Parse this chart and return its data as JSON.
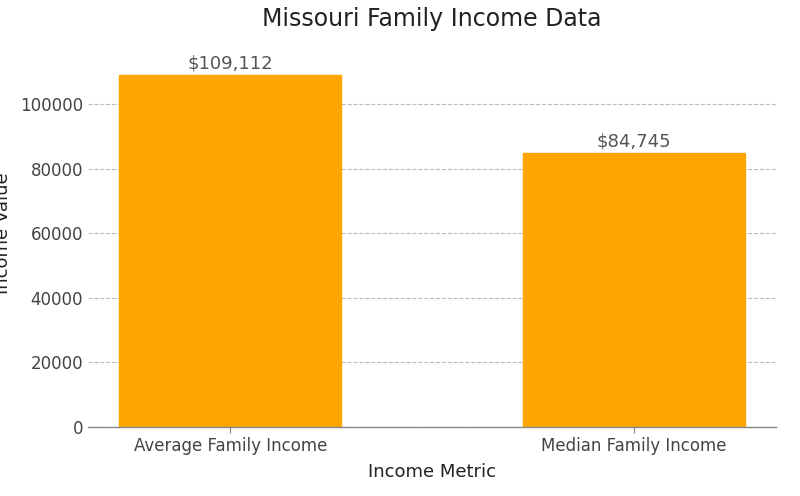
{
  "categories": [
    "Average Family Income",
    "Median Family Income"
  ],
  "values": [
    109112,
    84745
  ],
  "bar_color": "#FFA500",
  "title": "Missouri Family Income Data",
  "xlabel": "Income Metric",
  "ylabel": "Income Value",
  "ylim": [
    0,
    120000
  ],
  "yticks": [
    0,
    20000,
    40000,
    60000,
    80000,
    100000
  ],
  "title_fontsize": 17,
  "label_fontsize": 13,
  "tick_fontsize": 12,
  "annotation_labels": [
    "$109,112",
    "$84,745"
  ],
  "background_color": "#ffffff",
  "grid_color": "#bbbbbb",
  "bar_width": 0.55
}
